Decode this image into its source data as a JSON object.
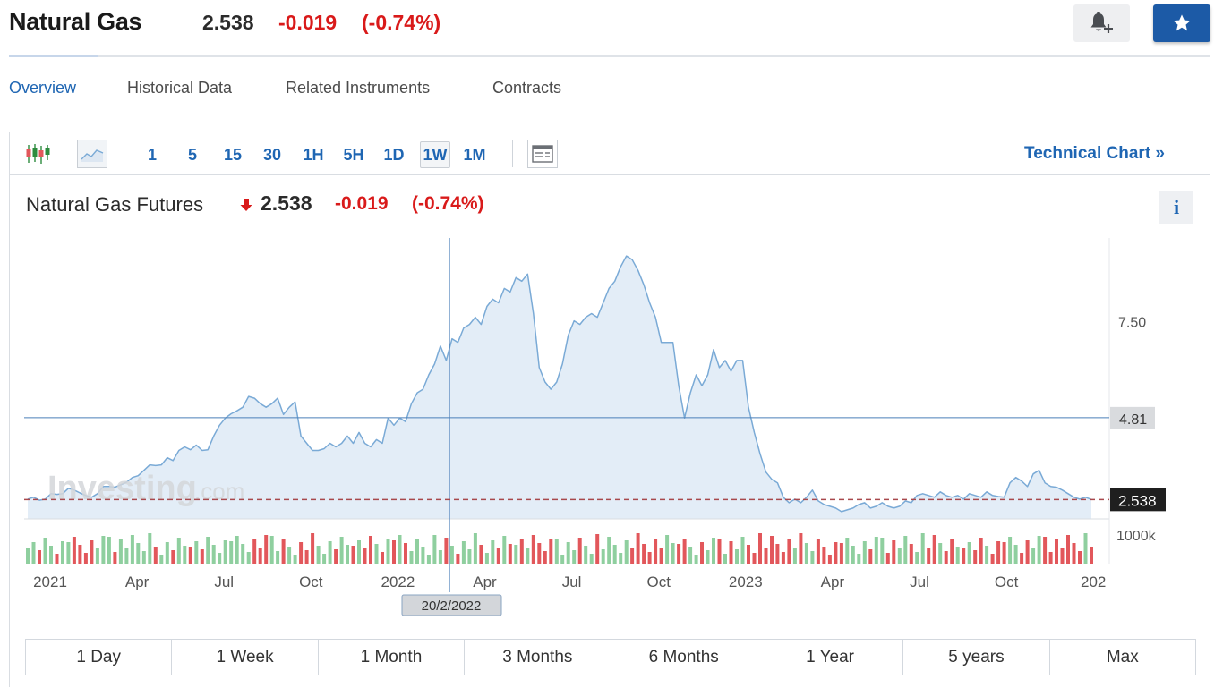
{
  "header": {
    "title": "Natural Gas",
    "price": "2.538",
    "change": "-0.019",
    "change_pct": "(-0.74%)"
  },
  "tabs": [
    {
      "label": "Overview",
      "active": true
    },
    {
      "label": "Historical Data"
    },
    {
      "label": "Related Instruments"
    },
    {
      "label": "Contracts"
    }
  ],
  "toolbar": {
    "timeframes": [
      "1",
      "5",
      "15",
      "30",
      "1H",
      "5H",
      "1D",
      "1W",
      "1M"
    ],
    "active_timeframe": "1W",
    "technical_link": "Technical Chart »"
  },
  "chart_header": {
    "title": "Natural Gas Futures",
    "price": "2.538",
    "change": "-0.019",
    "change_pct": "(-0.74%)",
    "info_label": "i"
  },
  "chart_data": {
    "type": "area",
    "x_tick_labels": [
      "2021",
      "Apr",
      "Jul",
      "Oct",
      "2022",
      "Apr",
      "Jul",
      "Oct",
      "2023",
      "Apr",
      "Jul",
      "Oct",
      "202"
    ],
    "y_tick_labels": [
      "7.50",
      "4.81",
      "2.538",
      "1000k"
    ],
    "crosshair_value": "4.81",
    "crosshair_date": "20/2/2022",
    "last_price": "2.538",
    "watermark": "Investing.com",
    "ylim": [
      2.0,
      9.8
    ],
    "series": [
      {
        "values": [
          2.55,
          2.6,
          2.52,
          2.55,
          2.7,
          2.68,
          2.7,
          2.85,
          2.8,
          2.72,
          2.65,
          2.6,
          2.7,
          2.9,
          2.9,
          2.88,
          2.95,
          3.02,
          3.15,
          3.2,
          3.35,
          3.5,
          3.48,
          3.5,
          3.7,
          3.62,
          3.9,
          4.0,
          3.92,
          4.05,
          3.9,
          3.92,
          4.3,
          4.6,
          4.8,
          4.92,
          5.0,
          5.1,
          5.4,
          5.35,
          5.2,
          5.1,
          5.2,
          5.35,
          4.9,
          5.1,
          5.25,
          4.3,
          4.1,
          3.9,
          3.9,
          3.95,
          4.1,
          4.0,
          4.1,
          4.3,
          4.1,
          4.4,
          4.1,
          4.0,
          4.2,
          4.1,
          4.8,
          4.6,
          4.8,
          4.7,
          5.2,
          5.5,
          5.6,
          6.0,
          6.3,
          6.8,
          6.4,
          7.0,
          6.9,
          7.3,
          7.4,
          7.6,
          7.4,
          7.9,
          8.1,
          8.0,
          8.4,
          8.3,
          8.7,
          8.6,
          8.8,
          7.7,
          6.2,
          5.8,
          5.6,
          5.8,
          6.3,
          7.1,
          7.5,
          7.4,
          7.6,
          7.7,
          7.6,
          8.0,
          8.4,
          8.6,
          9.0,
          9.3,
          9.2,
          8.9,
          8.5,
          8.0,
          7.6,
          6.9,
          6.9,
          6.9,
          5.7,
          4.8,
          5.5,
          6.0,
          5.7,
          6.0,
          6.7,
          6.2,
          6.4,
          6.1,
          6.4,
          6.4,
          5.1,
          4.4,
          3.8,
          3.3,
          3.1,
          3.0,
          2.6,
          2.45,
          2.55,
          2.45,
          2.6,
          2.8,
          2.5,
          2.4,
          2.35,
          2.3,
          2.2,
          2.25,
          2.3,
          2.4,
          2.45,
          2.3,
          2.35,
          2.45,
          2.35,
          2.3,
          2.35,
          2.5,
          2.45,
          2.65,
          2.7,
          2.65,
          2.6,
          2.75,
          2.65,
          2.6,
          2.65,
          2.55,
          2.7,
          2.65,
          2.6,
          2.75,
          2.65,
          2.62,
          2.6,
          3.0,
          3.15,
          3.05,
          2.9,
          3.25,
          3.35,
          3.0,
          2.9,
          2.88,
          2.8,
          2.7,
          2.6,
          2.55,
          2.6,
          2.538
        ]
      }
    ],
    "volume_series": [
      {
        "name": "up",
        "color": "#8fcf9f"
      },
      {
        "name": "down",
        "color": "#e2575b"
      }
    ],
    "grid": false
  },
  "ranges": [
    "1 Day",
    "1 Week",
    "1 Month",
    "3 Months",
    "6 Months",
    "1 Year",
    "5 years",
    "Max"
  ],
  "colors": {
    "accent": "#1f66b3",
    "negative": "#d91a1a",
    "area_line": "#7aaad6",
    "area_fill": "#e3edf7",
    "star_button": "#1c5aa6"
  }
}
